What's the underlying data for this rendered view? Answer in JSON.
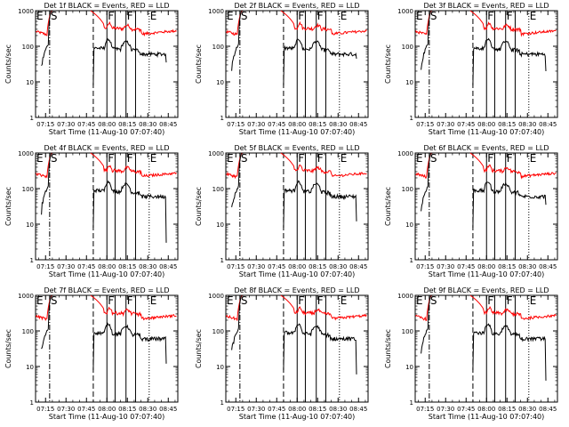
{
  "chart_data": [
    {
      "title": "Det 1f BLACK = Events, RED = LLD",
      "type": "line",
      "panel": 0
    },
    {
      "title": "Det 2f BLACK = Events, RED = LLD",
      "type": "line",
      "panel": 1
    },
    {
      "title": "Det 3f BLACK = Events, RED = LLD",
      "type": "line",
      "panel": 2
    },
    {
      "title": "Det 4f BLACK = Events, RED = LLD",
      "type": "line",
      "panel": 3
    },
    {
      "title": "Det 5f BLACK = Events, RED = LLD",
      "type": "line",
      "panel": 4
    },
    {
      "title": "Det 6f BLACK = Events, RED = LLD",
      "type": "line",
      "panel": 5
    },
    {
      "title": "Det 7f BLACK = Events, RED = LLD",
      "type": "line",
      "panel": 6
    },
    {
      "title": "Det 8f BLACK = Events, RED = LLD",
      "type": "line",
      "panel": 7
    },
    {
      "title": "Det 9f BLACK = Events, RED = LLD",
      "type": "line",
      "panel": 8
    }
  ],
  "shared": {
    "ylabel": "Counts/sec",
    "xlabel": "Start Time (11-Aug-10 07:07:40)",
    "yscale": "log",
    "ylim": [
      1,
      1000
    ],
    "yticks": [
      "1",
      "10",
      "100",
      "1000"
    ],
    "xticks": [
      "07:15",
      "07:30",
      "07:45",
      "08:00",
      "08:15",
      "08:30",
      "08:45"
    ],
    "x_minutes": [
      15,
      30,
      45,
      60,
      75,
      90,
      105
    ],
    "xlim_minutes": [
      7.67,
      112
    ],
    "markers": [
      {
        "label": "E",
        "at": 7.67,
        "style": "dotted"
      },
      {
        "label": "S",
        "at": 18,
        "style": "dashdot"
      },
      {
        "label": "",
        "at": 50,
        "style": "dashed"
      },
      {
        "label": "F",
        "at": 60,
        "style": "solid"
      },
      {
        "label": "",
        "at": 66,
        "style": "solid"
      },
      {
        "label": "F",
        "at": 74,
        "style": "solid"
      },
      {
        "label": "",
        "at": 81,
        "style": "solid"
      },
      {
        "label": "E",
        "at": 91,
        "style": "dotted"
      }
    ],
    "series_colors": {
      "events": "#000000",
      "lld": "#ff0000"
    },
    "series_names": [
      "Events",
      "LLD"
    ]
  }
}
